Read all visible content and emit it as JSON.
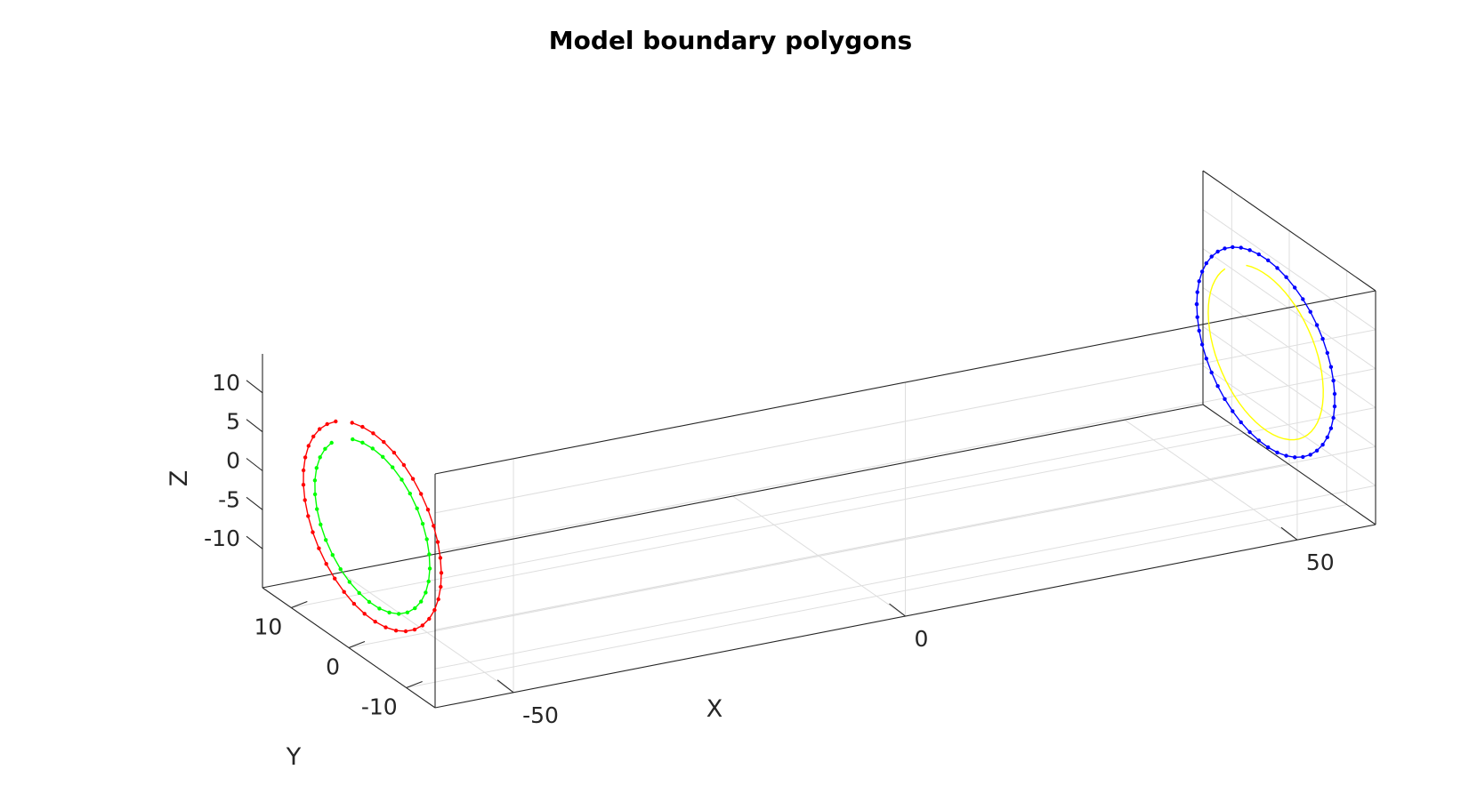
{
  "chart_data": {
    "type": "line3d",
    "title": "Model boundary polygons",
    "xlabel": "X",
    "ylabel": "Y",
    "zlabel": "Z",
    "xlim": [
      -60,
      60
    ],
    "ylim": [
      -15,
      15
    ],
    "zlim": [
      -15,
      15
    ],
    "grid": true,
    "xticks": [
      -50,
      0,
      50
    ],
    "yticks": [
      -10,
      0,
      10
    ],
    "zticks": [
      -10,
      -5,
      0,
      5,
      10
    ],
    "series": [
      {
        "color": "#ff0000",
        "x": -57,
        "center": [
          0,
          0
        ],
        "radius": 12,
        "start_angle": 73,
        "sweep": 345,
        "points": 40
      },
      {
        "color": "#00ff00",
        "x": -57,
        "center": [
          0,
          0
        ],
        "radius": 10,
        "start_angle": 70,
        "sweep": 335,
        "points": 34
      },
      {
        "color": "#0000ff",
        "x": 57,
        "center": [
          0,
          0
        ],
        "radius": 12,
        "start_angle": 0,
        "sweep": 360,
        "points": 48
      },
      {
        "color": "#ffff00",
        "x": 57,
        "center": [
          0,
          0
        ],
        "radius": 10,
        "start_angle": 70,
        "sweep": 335,
        "points": 0
      }
    ]
  }
}
